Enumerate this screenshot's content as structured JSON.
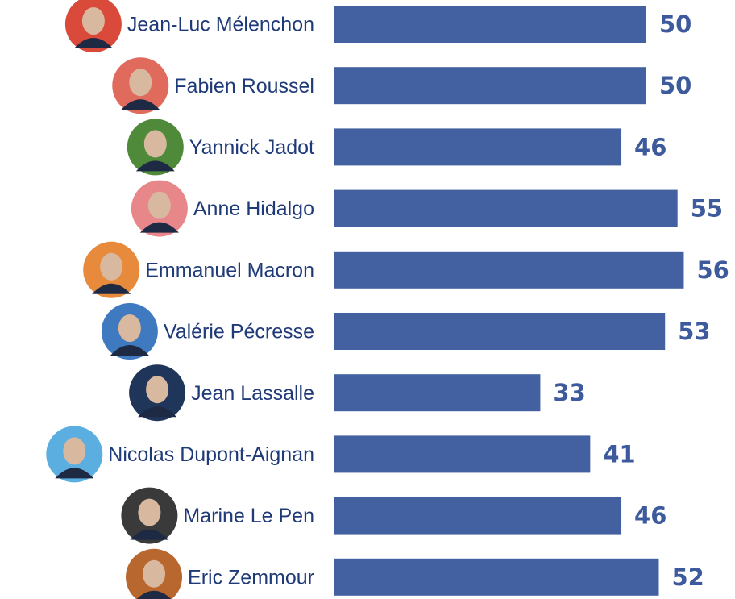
{
  "chart_data": {
    "type": "hbar",
    "categories": [
      "Jean-Luc Mélenchon",
      "Fabien Roussel",
      "Yannick Jadot",
      "Anne Hidalgo",
      "Emmanuel Macron",
      "Valérie Pécresse",
      "Jean Lassalle",
      "Nicolas Dupont-Aignan",
      "Marine Le Pen",
      "Eric Zemmour"
    ],
    "values": [
      50,
      50,
      46,
      55,
      56,
      53,
      33,
      41,
      46,
      52
    ],
    "color": "#4360a0",
    "xlim": [
      0,
      60
    ]
  }
}
